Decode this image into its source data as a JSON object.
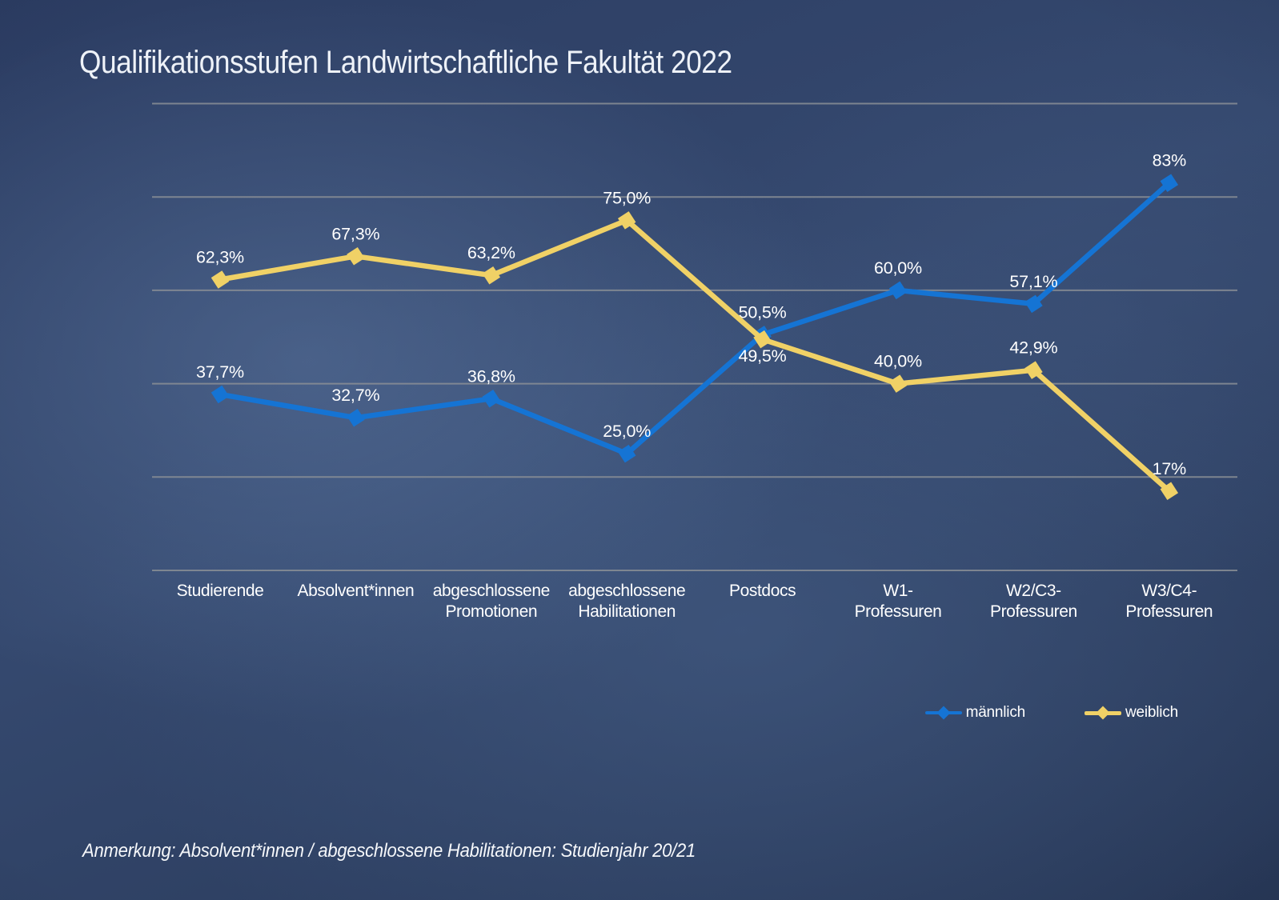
{
  "title": "Qualifikationsstufen Landwirtschaftliche Fakultät 2022",
  "note": "Anmerkung: Absolvent*innen / abgeschlossene Habilitationen: Studienjahr 20/21",
  "colors": {
    "maennlich_blue": "#1574d4",
    "weiblich_yellow": "#f0d166",
    "gridline_gray": "#8a8f96",
    "text_white": "#ffffff",
    "title_light": "#eef2f8",
    "background_navy": "#2c3f63"
  },
  "chart_data": {
    "type": "line",
    "title": "Qualifikationsstufen Landwirtschaftliche Fakultät 2022",
    "categories": [
      [
        "Studierende"
      ],
      [
        "Absolvent*innen"
      ],
      [
        "abgeschlossene",
        "Promotionen"
      ],
      [
        "abgeschlossene",
        "Habilitationen"
      ],
      [
        "Postdocs"
      ],
      [
        "W1-",
        "Professuren"
      ],
      [
        "W2/C3-",
        "Professuren"
      ],
      [
        "W3/C4-",
        "Professuren"
      ]
    ],
    "series": [
      {
        "name": "männlich",
        "color": "#1574d4",
        "values": [
          37.7,
          32.7,
          36.8,
          25.0,
          50.5,
          60.0,
          57.1,
          83
        ],
        "labels": [
          "37,7%",
          "32,7%",
          "36,8%",
          "25,0%",
          "50,5%",
          "60,0%",
          "57,1%",
          "83%"
        ],
        "label_pos": [
          "above",
          "above",
          "above",
          "above",
          "above",
          "above",
          "above",
          "above"
        ]
      },
      {
        "name": "weiblich",
        "color": "#f0d166",
        "values": [
          62.3,
          67.3,
          63.2,
          75.0,
          49.5,
          40.0,
          42.9,
          17
        ],
        "labels": [
          "62,3%",
          "67,3%",
          "63,2%",
          "75,0%",
          "49,5%",
          "40,0%",
          "42,9%",
          "17%"
        ],
        "label_pos": [
          "above",
          "above",
          "above",
          "above",
          "below",
          "above",
          "above",
          "above"
        ]
      }
    ],
    "ylim": [
      0,
      100
    ],
    "gridlines": [
      0,
      20,
      40,
      60,
      80,
      100
    ],
    "grid": true,
    "y_tick_labels_visible": false,
    "legend_position": "bottom-right"
  }
}
